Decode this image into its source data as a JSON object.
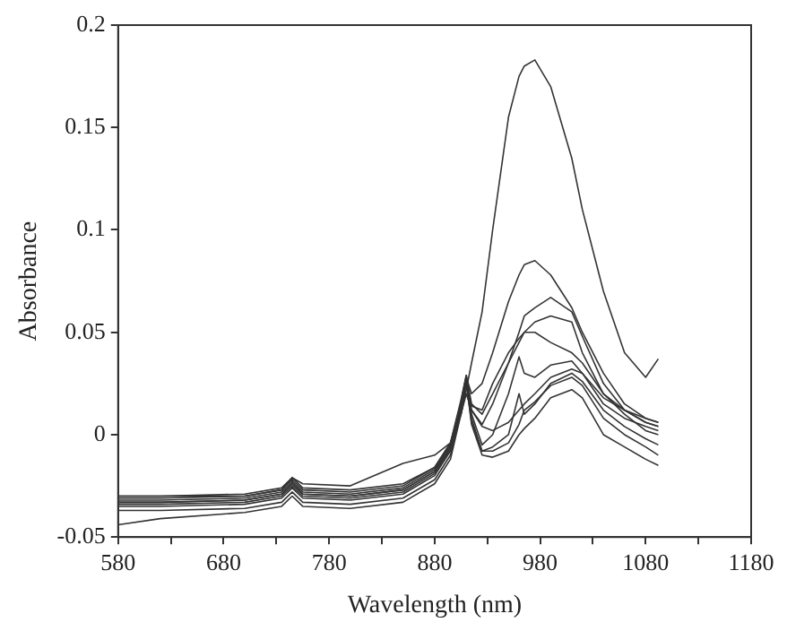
{
  "chart_data": {
    "type": "line",
    "xlabel": "Wavelength (nm)",
    "ylabel": "Absorbance",
    "marker": "none",
    "line_style": "solid",
    "x": [
      580,
      620,
      700,
      735,
      745,
      755,
      800,
      850,
      880,
      895,
      905,
      910,
      915,
      925,
      935,
      950,
      960,
      965,
      975,
      990,
      1010,
      1020,
      1040,
      1060,
      1080,
      1092
    ],
    "xlim": [
      580,
      1180
    ],
    "ylim": [
      -0.05,
      0.2
    ],
    "xticks": [
      580,
      {
        "value": 630,
        "label": null
      },
      680,
      {
        "value": 730,
        "label": null
      },
      780,
      {
        "value": 830,
        "label": null
      },
      880,
      {
        "value": 930,
        "label": null
      },
      980,
      {
        "value": 1030,
        "label": null
      },
      1080,
      {
        "value": 1130,
        "label": null
      },
      1180
    ],
    "yticks": [
      -0.05,
      0,
      0.05,
      0.1,
      0.15,
      0.2
    ],
    "series": [
      {
        "color": "#333333",
        "values": [
          -0.033,
          -0.033,
          -0.032,
          -0.029,
          -0.024,
          -0.029,
          -0.03,
          -0.027,
          -0.018,
          -0.006,
          0.01,
          0.022,
          0.035,
          0.06,
          0.1,
          0.155,
          0.175,
          0.18,
          0.183,
          0.17,
          0.135,
          0.11,
          0.07,
          0.04,
          0.028,
          0.037
        ]
      },
      {
        "color": "#333333",
        "values": [
          -0.03,
          -0.03,
          -0.029,
          -0.026,
          -0.021,
          -0.026,
          -0.027,
          -0.024,
          -0.016,
          -0.004,
          0.015,
          0.028,
          0.02,
          0.025,
          0.04,
          0.065,
          0.078,
          0.083,
          0.085,
          0.078,
          0.062,
          0.05,
          0.03,
          0.015,
          0.008,
          0.006
        ]
      },
      {
        "color": "#333333",
        "values": [
          -0.032,
          -0.032,
          -0.031,
          -0.028,
          -0.023,
          -0.028,
          -0.029,
          -0.026,
          -0.017,
          -0.005,
          0.016,
          0.029,
          0.015,
          0.01,
          0.02,
          0.035,
          0.05,
          0.058,
          0.062,
          0.067,
          0.06,
          0.048,
          0.025,
          0.012,
          0.006,
          0.004
        ]
      },
      {
        "color": "#333333",
        "values": [
          -0.031,
          -0.031,
          -0.03,
          -0.027,
          -0.022,
          -0.027,
          -0.028,
          -0.025,
          -0.016,
          -0.004,
          0.017,
          0.029,
          0.012,
          0.005,
          0.015,
          0.035,
          0.045,
          0.05,
          0.055,
          0.058,
          0.055,
          0.04,
          0.02,
          0.01,
          0.002,
          0.0
        ]
      },
      {
        "color": "#333333",
        "values": [
          -0.034,
          -0.034,
          -0.033,
          -0.03,
          -0.025,
          -0.03,
          -0.031,
          -0.028,
          -0.019,
          -0.007,
          0.014,
          0.028,
          0.01,
          -0.005,
          0.0,
          0.02,
          0.038,
          0.03,
          0.028,
          0.034,
          0.036,
          0.03,
          0.015,
          0.008,
          0.004,
          0.002
        ]
      },
      {
        "color": "#333333",
        "values": [
          -0.035,
          -0.035,
          -0.034,
          -0.031,
          -0.026,
          -0.031,
          -0.032,
          -0.029,
          -0.02,
          -0.008,
          0.013,
          0.027,
          0.008,
          -0.008,
          -0.006,
          0.0,
          0.02,
          0.01,
          0.015,
          0.025,
          0.03,
          0.026,
          0.012,
          0.004,
          -0.002,
          -0.005
        ]
      },
      {
        "color": "#333333",
        "values": [
          -0.037,
          -0.037,
          -0.036,
          -0.033,
          -0.028,
          -0.033,
          -0.034,
          -0.031,
          -0.022,
          -0.01,
          0.011,
          0.026,
          0.005,
          -0.01,
          -0.011,
          -0.008,
          0.0,
          0.003,
          0.008,
          0.018,
          0.022,
          0.018,
          0.0,
          -0.006,
          -0.012,
          -0.015
        ]
      },
      {
        "color": "#333333",
        "values": [
          -0.03,
          -0.03,
          -0.03,
          -0.027,
          -0.021,
          -0.024,
          -0.025,
          -0.014,
          -0.01,
          -0.004,
          0.01,
          0.02,
          0.012,
          0.004,
          0.002,
          0.006,
          0.012,
          0.015,
          0.02,
          0.028,
          0.032,
          0.03,
          0.018,
          0.012,
          0.008,
          0.006
        ]
      },
      {
        "color": "#333333",
        "values": [
          -0.044,
          -0.041,
          -0.038,
          -0.035,
          -0.03,
          -0.035,
          -0.036,
          -0.033,
          -0.024,
          -0.012,
          0.01,
          0.025,
          0.006,
          -0.008,
          -0.008,
          -0.004,
          0.005,
          0.012,
          0.016,
          0.024,
          0.028,
          0.024,
          0.008,
          0.0,
          -0.006,
          -0.01
        ]
      },
      {
        "color": "#333333",
        "values": [
          -0.033,
          -0.033,
          -0.032,
          -0.029,
          -0.024,
          -0.029,
          -0.03,
          -0.027,
          -0.018,
          -0.006,
          0.013,
          0.027,
          0.014,
          0.012,
          0.025,
          0.04,
          0.047,
          0.05,
          0.05,
          0.045,
          0.04,
          0.035,
          0.02,
          0.012,
          0.006,
          0.004
        ]
      }
    ]
  }
}
